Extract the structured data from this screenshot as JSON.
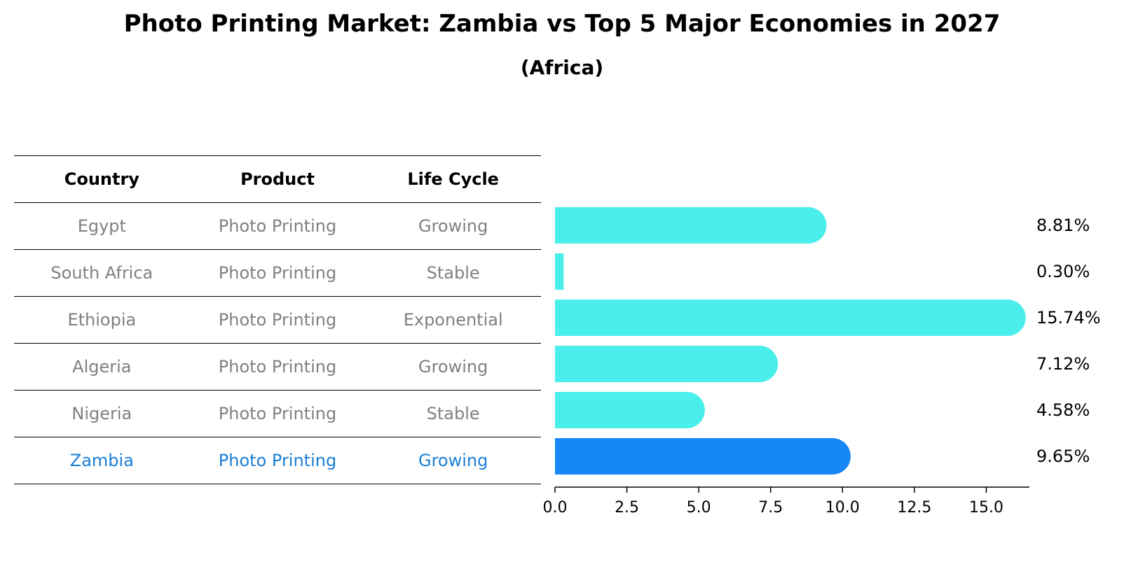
{
  "chart_data": {
    "type": "bar",
    "orientation": "horizontal",
    "title": "Photo Printing Market: Zambia vs Top 5 Major Economies in 2027",
    "subtitle": "(Africa)",
    "table": {
      "headers": [
        "Country",
        "Product",
        "Life Cycle"
      ],
      "rows": [
        [
          "Egypt",
          "Photo Printing",
          "Growing"
        ],
        [
          "South Africa",
          "Photo Printing",
          "Stable"
        ],
        [
          "Ethiopia",
          "Photo Printing",
          "Exponential"
        ],
        [
          "Algeria",
          "Photo Printing",
          "Growing"
        ],
        [
          "Nigeria",
          "Photo Printing",
          "Stable"
        ],
        [
          "Zambia",
          "Photo Printing",
          "Growing"
        ]
      ],
      "highlight_row": 5
    },
    "categories": [
      "Egypt",
      "South Africa",
      "Ethiopia",
      "Algeria",
      "Nigeria",
      "Zambia"
    ],
    "values": [
      8.81,
      0.3,
      15.74,
      7.12,
      4.58,
      9.65
    ],
    "value_labels": [
      "8.81%",
      "0.30%",
      "15.74%",
      "7.12%",
      "4.58%",
      "9.65%"
    ],
    "xlim": [
      0,
      16.5
    ],
    "xticks": [
      0.0,
      2.5,
      5.0,
      7.5,
      10.0,
      12.5,
      15.0
    ],
    "xtick_labels": [
      "0.0",
      "2.5",
      "5.0",
      "7.5",
      "10.0",
      "12.5",
      "15.0"
    ],
    "xlabel": "",
    "ylabel": "",
    "grid": false,
    "colors": {
      "bar": "#4aeeea",
      "highlight_bar": "#1787f5",
      "highlight_text": "#1a7fd6",
      "table_text": "#808080"
    }
  }
}
